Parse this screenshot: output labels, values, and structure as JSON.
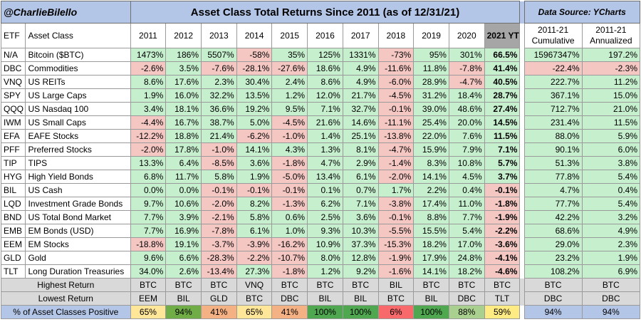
{
  "header": {
    "handle": "@CharlieBilello",
    "title": "Asset Class Total Returns Since 2011 (as of 12/31/21)",
    "source": "Data Source: YCharts"
  },
  "columns": {
    "etf": "ETF",
    "asset_class": "Asset Class",
    "years": [
      "2011",
      "2012",
      "2013",
      "2014",
      "2015",
      "2016",
      "2017",
      "2018",
      "2019",
      "2020",
      "2021 YTD"
    ],
    "cumulative": "2011-21\nCumulative",
    "annualized": "2011-21\nAnnualized"
  },
  "colors": {
    "positive": "#c6efce",
    "negative": "#f4c7c3",
    "title_band": "#b4c6e7",
    "ytd_header": "#a6a6a6",
    "summary_band": "#d9d9d9"
  },
  "chart_data": {
    "type": "table",
    "rows": [
      {
        "etf": "N/A",
        "name": "Bitcoin ($BTC)",
        "returns": [
          "1473%",
          "186%",
          "5507%",
          "-58%",
          "35%",
          "125%",
          "1331%",
          "-73%",
          "95%",
          "301%",
          "66.5%"
        ],
        "cumulative": "15967347%",
        "annualized": "197.2%"
      },
      {
        "etf": "DBC",
        "name": "Commodities",
        "returns": [
          "-2.6%",
          "3.5%",
          "-7.6%",
          "-28.1%",
          "-27.6%",
          "18.6%",
          "4.9%",
          "-11.6%",
          "11.8%",
          "-7.8%",
          "41.4%"
        ],
        "cumulative": "-22.4%",
        "annualized": "-2.3%"
      },
      {
        "etf": "VNQ",
        "name": "US REITs",
        "returns": [
          "8.6%",
          "17.6%",
          "2.3%",
          "30.4%",
          "2.4%",
          "8.6%",
          "4.9%",
          "-6.0%",
          "28.9%",
          "-4.7%",
          "40.5%"
        ],
        "cumulative": "222.7%",
        "annualized": "11.2%"
      },
      {
        "etf": "SPY",
        "name": "US Large Caps",
        "returns": [
          "1.9%",
          "16.0%",
          "32.2%",
          "13.5%",
          "1.2%",
          "12.0%",
          "21.7%",
          "-4.5%",
          "31.2%",
          "18.4%",
          "28.7%"
        ],
        "cumulative": "367.1%",
        "annualized": "15.0%"
      },
      {
        "etf": "QQQ",
        "name": "US Nasdaq 100",
        "returns": [
          "3.4%",
          "18.1%",
          "36.6%",
          "19.2%",
          "9.5%",
          "7.1%",
          "32.7%",
          "-0.1%",
          "39.0%",
          "48.6%",
          "27.4%"
        ],
        "cumulative": "712.7%",
        "annualized": "21.0%"
      },
      {
        "etf": "IWM",
        "name": "US Small Caps",
        "returns": [
          "-4.4%",
          "16.7%",
          "38.7%",
          "5.0%",
          "-4.5%",
          "21.6%",
          "14.6%",
          "-11.1%",
          "25.4%",
          "20.0%",
          "14.5%"
        ],
        "cumulative": "231.4%",
        "annualized": "11.5%"
      },
      {
        "etf": "EFA",
        "name": "EAFE Stocks",
        "returns": [
          "-12.2%",
          "18.8%",
          "21.4%",
          "-6.2%",
          "-1.0%",
          "1.4%",
          "25.1%",
          "-13.8%",
          "22.0%",
          "7.6%",
          "11.5%"
        ],
        "cumulative": "88.0%",
        "annualized": "5.9%"
      },
      {
        "etf": "PFF",
        "name": "Preferred Stocks",
        "returns": [
          "-2.0%",
          "17.8%",
          "-1.0%",
          "14.1%",
          "4.3%",
          "1.3%",
          "8.1%",
          "-4.7%",
          "15.9%",
          "7.9%",
          "7.1%"
        ],
        "cumulative": "90.1%",
        "annualized": "6.0%"
      },
      {
        "etf": "TIP",
        "name": "TIPS",
        "returns": [
          "13.3%",
          "6.4%",
          "-8.5%",
          "3.6%",
          "-1.8%",
          "4.7%",
          "2.9%",
          "-1.4%",
          "8.3%",
          "10.8%",
          "5.7%"
        ],
        "cumulative": "51.3%",
        "annualized": "3.8%"
      },
      {
        "etf": "HYG",
        "name": "High Yield Bonds",
        "returns": [
          "6.8%",
          "11.7%",
          "5.8%",
          "1.9%",
          "-5.0%",
          "13.4%",
          "6.1%",
          "-2.0%",
          "14.1%",
          "4.5%",
          "3.7%"
        ],
        "cumulative": "77.8%",
        "annualized": "5.4%"
      },
      {
        "etf": "BIL",
        "name": "US Cash",
        "returns": [
          "0.0%",
          "0.0%",
          "-0.1%",
          "-0.1%",
          "-0.1%",
          "0.1%",
          "0.7%",
          "1.7%",
          "2.2%",
          "0.4%",
          "-0.1%"
        ],
        "cumulative": "4.7%",
        "annualized": "0.4%"
      },
      {
        "etf": "LQD",
        "name": "Investment Grade Bonds",
        "returns": [
          "9.7%",
          "10.6%",
          "-2.0%",
          "8.2%",
          "-1.3%",
          "6.2%",
          "7.1%",
          "-3.8%",
          "17.4%",
          "11.0%",
          "-1.8%"
        ],
        "cumulative": "77.7%",
        "annualized": "5.4%"
      },
      {
        "etf": "BND",
        "name": "US Total Bond Market",
        "returns": [
          "7.7%",
          "3.9%",
          "-2.1%",
          "5.8%",
          "0.6%",
          "2.5%",
          "3.6%",
          "-0.1%",
          "8.8%",
          "7.7%",
          "-1.9%"
        ],
        "cumulative": "42.2%",
        "annualized": "3.2%"
      },
      {
        "etf": "EMB",
        "name": "EM Bonds (USD)",
        "returns": [
          "7.7%",
          "16.9%",
          "-7.8%",
          "6.1%",
          "1.0%",
          "9.3%",
          "10.3%",
          "-5.5%",
          "15.5%",
          "5.4%",
          "-2.2%"
        ],
        "cumulative": "68.6%",
        "annualized": "4.9%"
      },
      {
        "etf": "EEM",
        "name": "EM Stocks",
        "returns": [
          "-18.8%",
          "19.1%",
          "-3.7%",
          "-3.9%",
          "-16.2%",
          "10.9%",
          "37.3%",
          "-15.3%",
          "18.2%",
          "17.0%",
          "-3.6%"
        ],
        "cumulative": "29.0%",
        "annualized": "2.3%"
      },
      {
        "etf": "GLD",
        "name": "Gold",
        "returns": [
          "9.6%",
          "6.6%",
          "-28.3%",
          "-2.2%",
          "-10.7%",
          "8.0%",
          "12.8%",
          "-1.9%",
          "17.9%",
          "24.8%",
          "-4.1%"
        ],
        "cumulative": "23.2%",
        "annualized": "1.9%"
      },
      {
        "etf": "TLT",
        "name": "Long Duration Treasuries",
        "returns": [
          "34.0%",
          "2.6%",
          "-13.4%",
          "27.3%",
          "-1.8%",
          "1.2%",
          "9.2%",
          "-1.6%",
          "14.1%",
          "18.2%",
          "-4.6%"
        ],
        "cumulative": "108.2%",
        "annualized": "6.9%"
      }
    ],
    "highest_return": {
      "label": "Highest Return",
      "values": [
        "BTC",
        "BTC",
        "BTC",
        "VNQ",
        "BTC",
        "BTC",
        "BTC",
        "BIL",
        "BTC",
        "BTC",
        "BTC"
      ],
      "cumulative": "BTC",
      "annualized": "BTC"
    },
    "lowest_return": {
      "label": "Lowest Return",
      "values": [
        "EEM",
        "BIL",
        "GLD",
        "BTC",
        "DBC",
        "BIL",
        "BIL",
        "BTC",
        "BIL",
        "DBC",
        "TLT"
      ],
      "cumulative": "DBC",
      "annualized": "DBC"
    },
    "pct_positive": {
      "label": "% of Asset Classes Positive",
      "values": [
        "65%",
        "94%",
        "41%",
        "65%",
        "41%",
        "100%",
        "100%",
        "6%",
        "100%",
        "88%",
        "59%"
      ],
      "colors": [
        "#ffe699",
        "#70ad47",
        "#f4b183",
        "#ffe699",
        "#f4b183",
        "#4fa84f",
        "#4fa84f",
        "#f8696b",
        "#4fa84f",
        "#a9d08e",
        "#ffeb84"
      ],
      "cumulative": "94%",
      "annualized": "94%"
    }
  }
}
